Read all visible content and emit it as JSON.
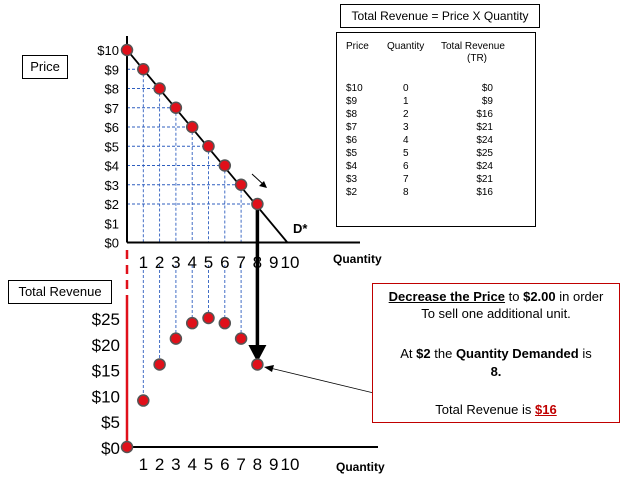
{
  "formula": "Total Revenue = Price X Quantity",
  "table": {
    "headers": {
      "price": "Price",
      "quantity": "Quantity",
      "tr_line1": "Total Revenue",
      "tr_line2": "(TR)"
    },
    "rows": [
      {
        "price": "$10",
        "quantity": "0",
        "tr": "$0"
      },
      {
        "price": "$9",
        "quantity": "1",
        "tr": "$9"
      },
      {
        "price": "$8",
        "quantity": "2",
        "tr": "$16"
      },
      {
        "price": "$7",
        "quantity": "3",
        "tr": "$21"
      },
      {
        "price": "$6",
        "quantity": "4",
        "tr": "$24"
      },
      {
        "price": "$5",
        "quantity": "5",
        "tr": "$25"
      },
      {
        "price": "$4",
        "quantity": "6",
        "tr": "$24"
      },
      {
        "price": "$3",
        "quantity": "7",
        "tr": "$21"
      },
      {
        "price": "$2",
        "quantity": "8",
        "tr": "$16"
      }
    ]
  },
  "labels": {
    "price_box": "Price",
    "tr_box": "Total Revenue",
    "demand": "D*",
    "quantity_axis": "Quantity"
  },
  "explanation": {
    "part1": "Decrease the Price",
    "part2": " to ",
    "part3": "$2.00",
    "part4": " in order",
    "line2": "To sell one additional  unit.",
    "line3a": "At ",
    "line3b": "$2",
    "line3c": " the ",
    "line3d": "Quantity Demanded",
    "line3e": " is",
    "line4": "8.",
    "line5a": "Total Revenue is ",
    "line5b": "$16"
  },
  "colors": {
    "point": "#e0101a",
    "guide": "#2f5fbf",
    "axis_red": "#e0101a",
    "box_red": "#c00000"
  },
  "chart_data": [
    {
      "type": "line",
      "x": [
        0,
        1,
        2,
        3,
        4,
        5,
        6,
        7,
        8
      ],
      "y": [
        10,
        9,
        8,
        7,
        6,
        5,
        4,
        3,
        2
      ],
      "yticks": [
        "$0",
        "$1",
        "$2",
        "$3",
        "$4",
        "$5",
        "$6",
        "$7",
        "$8",
        "$9",
        "$10"
      ],
      "xticks": [
        "1",
        "2",
        "3",
        "4",
        "5",
        "6",
        "7",
        "8",
        "9",
        "10"
      ],
      "xlim": [
        0,
        10
      ],
      "ylim": [
        0,
        10
      ]
    },
    {
      "type": "scatter",
      "x": [
        0,
        1,
        2,
        3,
        4,
        5,
        6,
        7,
        8
      ],
      "y": [
        0,
        9,
        16,
        21,
        24,
        25,
        24,
        21,
        16
      ],
      "yticks": [
        "$0",
        "$5",
        "$10",
        "$15",
        "$20",
        "$25"
      ],
      "xticks": [
        "1",
        "2",
        "3",
        "4",
        "5",
        "6",
        "7",
        "8",
        "9",
        "10"
      ],
      "xlim": [
        0,
        10
      ],
      "ylim": [
        0,
        25
      ]
    }
  ]
}
